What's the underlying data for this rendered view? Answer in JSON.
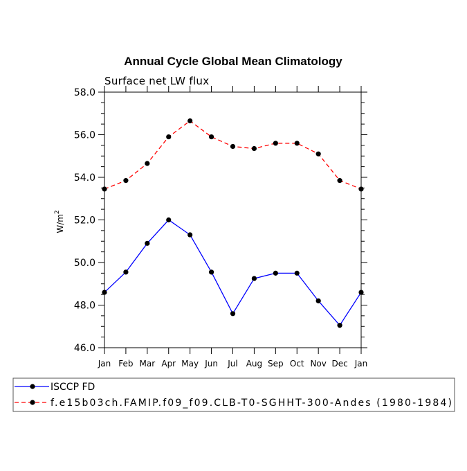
{
  "chart_data": {
    "type": "line",
    "title": "Annual Cycle Global Mean Climatology",
    "subtitle": "Surface net LW flux",
    "xlabel": "",
    "ylabel": "W/m",
    "ylabel_superscript": "2",
    "categories": [
      "Jan",
      "Feb",
      "Mar",
      "Apr",
      "May",
      "Jun",
      "Jul",
      "Aug",
      "Sep",
      "Oct",
      "Nov",
      "Dec",
      "Jan"
    ],
    "ylim": [
      46.0,
      58.0
    ],
    "yticks": [
      "46.0",
      "48.0",
      "50.0",
      "52.0",
      "54.0",
      "56.0",
      "58.0"
    ],
    "yticks_values": [
      46,
      48,
      50,
      52,
      54,
      56,
      58
    ],
    "series": [
      {
        "name": "ISCCP FD",
        "color": "#0000ff",
        "dash": "solid",
        "values": [
          48.6,
          49.55,
          50.9,
          52.0,
          51.3,
          49.55,
          47.6,
          49.25,
          49.5,
          49.5,
          48.2,
          47.05,
          48.6
        ]
      },
      {
        "name": "f.e15b03ch.FAMIP.f09_f09.CLB-T0-SGHHT-300-Andes (1980-1984)",
        "color": "#ff0000",
        "dash": "dashed",
        "values": [
          53.45,
          53.85,
          54.65,
          55.9,
          56.65,
          55.9,
          55.45,
          55.35,
          55.6,
          55.6,
          55.1,
          53.85,
          53.45
        ]
      }
    ],
    "legend_position": "bottom"
  }
}
